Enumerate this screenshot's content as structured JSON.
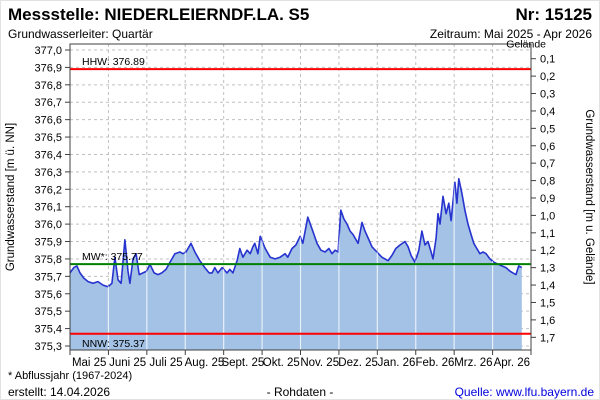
{
  "header": {
    "station": "Messstelle: NIEDERLEIERNDF.LA. S5",
    "number": "Nr: 15125",
    "aquifer": "Grundwasserleiter: Quartär",
    "period": "Zeitraum: Mai 2025 - Apr 2026"
  },
  "footer": {
    "footnote": "* Abflussjahr (1967-2024)",
    "created": "erstellt:  14.04.2026",
    "center": "- Rohdaten -",
    "source": "Quelle: www.lfu.bayern.de"
  },
  "colors": {
    "series_line": "#2633cf",
    "series_fill": "#a3c2e5",
    "hhw_nnw": "#ff0000",
    "mw": "#008000",
    "grid": "#c0c0c0",
    "border": "#404040",
    "link": "#0000dd"
  },
  "chart_data": {
    "type": "area",
    "title": "",
    "x_ticks": [
      "Mai 25",
      "Juni 25",
      "Juli 25",
      "Aug. 25",
      "Sept. 25",
      "Okt. 25",
      "Nov. 25",
      "Dez. 25",
      "Jan. 26",
      "Feb. 26",
      "Mrz. 26",
      "Apr. 26"
    ],
    "y_left": {
      "label": "Grundwasserstand [m ü. NN]",
      "min": 375.3,
      "max": 377.0,
      "tick_step": 0.1,
      "decimal_separator": ","
    },
    "y_right": {
      "label": "Grundwasserstand [m u. Gelände]",
      "min": 0.1,
      "max": 1.7,
      "tick_step": 0.1,
      "direction": "inverted",
      "decimal_separator": ","
    },
    "ground_elevation": 377.05,
    "ground_label": "Gelände",
    "grid": "dashed",
    "reference_lines": [
      {
        "name": "HHW",
        "value": 376.89,
        "label": "HHW: 376.89",
        "color": "#ff0000",
        "label_side": "above"
      },
      {
        "name": "MW",
        "value": 375.77,
        "label": "MW*: 375.77",
        "color": "#008000",
        "label_side": "above"
      },
      {
        "name": "NNW",
        "value": 375.37,
        "label": "NNW: 375.37",
        "color": "#ff0000",
        "label_side": "below"
      }
    ],
    "series": [
      {
        "name": "Grundwasserstand (Rohdaten)",
        "x_unit": "months since 2025-05-01",
        "y_unit": "m ü. NN",
        "points": [
          [
            0.0,
            375.72
          ],
          [
            0.1,
            375.75
          ],
          [
            0.18,
            375.76
          ],
          [
            0.26,
            375.72
          ],
          [
            0.36,
            375.69
          ],
          [
            0.47,
            375.67
          ],
          [
            0.6,
            375.66
          ],
          [
            0.73,
            375.67
          ],
          [
            0.86,
            375.65
          ],
          [
            0.99,
            375.64
          ],
          [
            1.09,
            375.66
          ],
          [
            1.17,
            375.81
          ],
          [
            1.25,
            375.68
          ],
          [
            1.33,
            375.66
          ],
          [
            1.43,
            375.91
          ],
          [
            1.51,
            375.73
          ],
          [
            1.56,
            375.66
          ],
          [
            1.64,
            375.8
          ],
          [
            1.72,
            375.83
          ],
          [
            1.8,
            375.71
          ],
          [
            1.9,
            375.72
          ],
          [
            2.0,
            375.73
          ],
          [
            2.08,
            375.77
          ],
          [
            2.19,
            375.72
          ],
          [
            2.29,
            375.71
          ],
          [
            2.39,
            375.72
          ],
          [
            2.5,
            375.74
          ],
          [
            2.6,
            375.78
          ],
          [
            2.73,
            375.83
          ],
          [
            2.86,
            375.84
          ],
          [
            2.94,
            375.83
          ],
          [
            3.02,
            375.84
          ],
          [
            3.15,
            375.89
          ],
          [
            3.25,
            375.84
          ],
          [
            3.38,
            375.79
          ],
          [
            3.51,
            375.75
          ],
          [
            3.62,
            375.72
          ],
          [
            3.7,
            375.72
          ],
          [
            3.77,
            375.75
          ],
          [
            3.85,
            375.72
          ],
          [
            3.96,
            375.75
          ],
          [
            4.09,
            375.72
          ],
          [
            4.16,
            375.74
          ],
          [
            4.24,
            375.72
          ],
          [
            4.35,
            375.79
          ],
          [
            4.42,
            375.86
          ],
          [
            4.5,
            375.81
          ],
          [
            4.61,
            375.85
          ],
          [
            4.69,
            375.83
          ],
          [
            4.76,
            375.87
          ],
          [
            4.81,
            375.89
          ],
          [
            4.89,
            375.83
          ],
          [
            4.95,
            375.93
          ],
          [
            5.08,
            375.86
          ],
          [
            5.21,
            375.81
          ],
          [
            5.34,
            375.8
          ],
          [
            5.47,
            375.81
          ],
          [
            5.6,
            375.83
          ],
          [
            5.67,
            375.81
          ],
          [
            5.78,
            375.86
          ],
          [
            5.88,
            375.88
          ],
          [
            5.99,
            375.93
          ],
          [
            6.06,
            375.89
          ],
          [
            6.19,
            376.04
          ],
          [
            6.32,
            375.96
          ],
          [
            6.43,
            375.89
          ],
          [
            6.53,
            375.85
          ],
          [
            6.64,
            375.84
          ],
          [
            6.74,
            375.86
          ],
          [
            6.82,
            375.83
          ],
          [
            6.9,
            375.85
          ],
          [
            6.98,
            375.84
          ],
          [
            7.05,
            376.08
          ],
          [
            7.13,
            376.03
          ],
          [
            7.21,
            376.0
          ],
          [
            7.29,
            375.96
          ],
          [
            7.37,
            375.94
          ],
          [
            7.5,
            375.89
          ],
          [
            7.6,
            376.01
          ],
          [
            7.68,
            375.96
          ],
          [
            7.76,
            375.92
          ],
          [
            7.86,
            375.87
          ],
          [
            7.99,
            375.84
          ],
          [
            8.12,
            375.81
          ],
          [
            8.28,
            375.79
          ],
          [
            8.38,
            375.82
          ],
          [
            8.48,
            375.86
          ],
          [
            8.59,
            375.88
          ],
          [
            8.72,
            375.9
          ],
          [
            8.8,
            375.87
          ],
          [
            8.88,
            375.82
          ],
          [
            8.98,
            375.78
          ],
          [
            9.08,
            375.85
          ],
          [
            9.16,
            375.96
          ],
          [
            9.24,
            375.88
          ],
          [
            9.32,
            375.9
          ],
          [
            9.4,
            375.84
          ],
          [
            9.45,
            375.8
          ],
          [
            9.53,
            375.92
          ],
          [
            9.58,
            376.06
          ],
          [
            9.63,
            376.0
          ],
          [
            9.71,
            376.16
          ],
          [
            9.79,
            376.06
          ],
          [
            9.86,
            376.12
          ],
          [
            9.92,
            376.02
          ],
          [
            10.02,
            376.24
          ],
          [
            10.07,
            376.12
          ],
          [
            10.12,
            376.26
          ],
          [
            10.2,
            376.18
          ],
          [
            10.28,
            376.08
          ],
          [
            10.36,
            376.0
          ],
          [
            10.44,
            375.94
          ],
          [
            10.51,
            375.89
          ],
          [
            10.59,
            375.86
          ],
          [
            10.67,
            375.83
          ],
          [
            10.75,
            375.84
          ],
          [
            10.83,
            375.83
          ],
          [
            10.93,
            375.8
          ],
          [
            11.04,
            375.78
          ],
          [
            11.14,
            375.77
          ],
          [
            11.24,
            375.76
          ],
          [
            11.35,
            375.75
          ],
          [
            11.45,
            375.73
          ],
          [
            11.53,
            375.72
          ],
          [
            11.61,
            375.71
          ],
          [
            11.68,
            375.76
          ],
          [
            11.76,
            375.75
          ]
        ]
      }
    ]
  }
}
